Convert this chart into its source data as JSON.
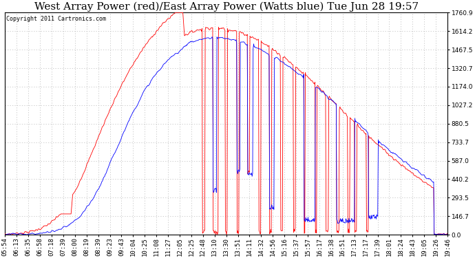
{
  "title": "West Array Power (red)/East Array Power (Watts blue) Tue Jun 28 19:57",
  "copyright": "Copyright 2011 Cartronics.com",
  "background_color": "#ffffff",
  "plot_bg_color": "#ffffff",
  "grid_color": "#bbbbbb",
  "yticks": [
    0.0,
    146.7,
    293.5,
    440.2,
    587.0,
    733.7,
    880.5,
    1027.2,
    1174.0,
    1320.7,
    1467.5,
    1614.2,
    1760.9
  ],
  "ymax": 1760.9,
  "ymin": 0.0,
  "red_color": "#ff0000",
  "blue_color": "#0000ff",
  "title_fontsize": 11,
  "axis_fontsize": 6.5,
  "copyright_fontsize": 6,
  "xtick_labels": [
    "05:54",
    "06:13",
    "06:35",
    "06:58",
    "07:18",
    "07:39",
    "08:00",
    "08:19",
    "08:39",
    "09:23",
    "09:43",
    "10:04",
    "10:25",
    "11:08",
    "11:27",
    "12:05",
    "12:25",
    "12:48",
    "13:10",
    "13:30",
    "13:51",
    "14:11",
    "14:32",
    "14:56",
    "15:16",
    "15:37",
    "15:57",
    "16:17",
    "16:38",
    "16:51",
    "17:13",
    "17:17",
    "17:39",
    "18:01",
    "18:24",
    "18:43",
    "19:05",
    "19:26",
    "19:46"
  ]
}
